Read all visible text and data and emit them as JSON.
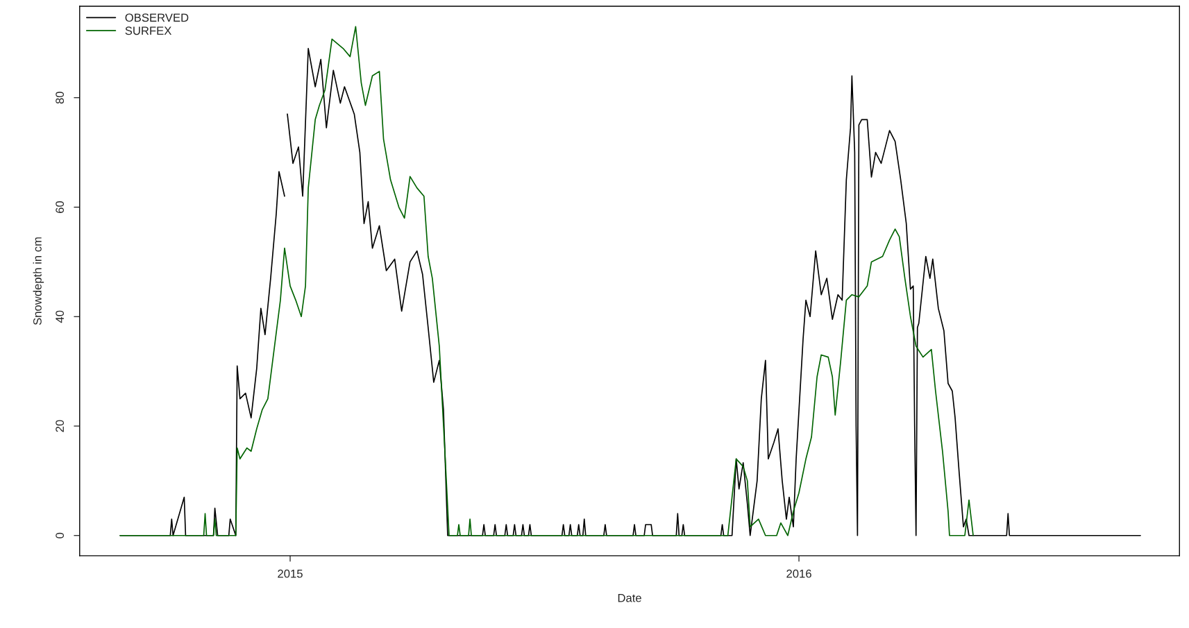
{
  "chart_data": {
    "type": "line",
    "xlabel": "Date",
    "ylabel": "Snowdepth in cm",
    "xlim": [
      "2014-08-03",
      "2016-09-30"
    ],
    "xticks": [
      {
        "value": "2015-01-01",
        "label": "2015"
      },
      {
        "value": "2016-01-01",
        "label": "2016"
      }
    ],
    "ylim": [
      -3.7,
      96.7
    ],
    "yticks": [
      0,
      20,
      40,
      60,
      80
    ],
    "grid": false,
    "legend": "top left",
    "line_style": "solid",
    "series": [
      {
        "name": "OBSERVED",
        "color": "#000000",
        "x": [
          "2014-09-01",
          "2014-10-07",
          "2014-10-08",
          "2014-10-09",
          "2014-10-17",
          "2014-10-18",
          "2014-10-20",
          "2014-11-07",
          "2014-11-08",
          "2014-11-10",
          "2014-11-18",
          "2014-11-19",
          "2014-11-23",
          "2014-11-24",
          "2014-11-26",
          "2014-11-30",
          "2014-12-04",
          "2014-12-08",
          "2014-12-11",
          "2014-12-14",
          "2014-12-18",
          "2014-12-22",
          "2014-12-24",
          "2014-12-28",
          "2014-12-29",
          "2014-12-30",
          "2015-01-03",
          "2015-01-07",
          "2015-01-10",
          "2015-01-14",
          "2015-01-19",
          "2015-01-23",
          "2015-01-27",
          "2015-02-01",
          "2015-02-06",
          "2015-02-09",
          "2015-02-16",
          "2015-02-20",
          "2015-02-23",
          "2015-02-26",
          "2015-03-01",
          "2015-03-06",
          "2015-03-11",
          "2015-03-17",
          "2015-03-22",
          "2015-03-28",
          "2015-04-02",
          "2015-04-06",
          "2015-04-10",
          "2015-04-14",
          "2015-04-18",
          "2015-04-21",
          "2015-04-24",
          "2015-05-19",
          "2015-05-20",
          "2015-05-21",
          "2015-05-27",
          "2015-05-28",
          "2015-05-29",
          "2015-06-04",
          "2015-06-05",
          "2015-06-06",
          "2015-06-10",
          "2015-06-11",
          "2015-06-12",
          "2015-06-16",
          "2015-06-17",
          "2015-06-18",
          "2015-06-21",
          "2015-06-22",
          "2015-06-23",
          "2015-07-15",
          "2015-07-16",
          "2015-07-17",
          "2015-07-20",
          "2015-07-21",
          "2015-07-22",
          "2015-07-26",
          "2015-07-27",
          "2015-07-28",
          "2015-07-30",
          "2015-07-31",
          "2015-08-01",
          "2015-08-14",
          "2015-08-15",
          "2015-08-16",
          "2015-09-04",
          "2015-09-05",
          "2015-09-06",
          "2015-09-12",
          "2015-09-13",
          "2015-09-17",
          "2015-09-18",
          "2015-10-05",
          "2015-10-06",
          "2015-10-07",
          "2015-10-09",
          "2015-10-10",
          "2015-10-11",
          "2015-11-06",
          "2015-11-07",
          "2015-11-08",
          "2015-11-14",
          "2015-11-17",
          "2015-11-19",
          "2015-11-22",
          "2015-11-25",
          "2015-11-27",
          "2015-12-02",
          "2015-12-05",
          "2015-12-08",
          "2015-12-10",
          "2015-12-14",
          "2015-12-17",
          "2015-12-20",
          "2015-12-23",
          "2015-12-25",
          "2015-12-28",
          "2015-12-30",
          "2016-01-04",
          "2016-01-06",
          "2016-01-09",
          "2016-01-13",
          "2016-01-17",
          "2016-01-21",
          "2016-01-25",
          "2016-01-29",
          "2016-02-01",
          "2016-02-04",
          "2016-02-07",
          "2016-02-08",
          "2016-02-10",
          "2016-02-11",
          "2016-02-12",
          "2016-02-13",
          "2016-02-15",
          "2016-02-19",
          "2016-02-22",
          "2016-02-25",
          "2016-02-29",
          "2016-03-06",
          "2016-03-10",
          "2016-03-14",
          "2016-03-18",
          "2016-03-21",
          "2016-03-23",
          "2016-03-24",
          "2016-03-25",
          "2016-03-26",
          "2016-03-27",
          "2016-04-01",
          "2016-04-04",
          "2016-04-06",
          "2016-04-10",
          "2016-04-14",
          "2016-04-17",
          "2016-04-20",
          "2016-04-22",
          "2016-04-25",
          "2016-04-28",
          "2016-04-30",
          "2016-05-02",
          "2016-05-29",
          "2016-05-30",
          "2016-05-31",
          "2016-09-02"
        ],
        "values": [
          0,
          0,
          3,
          0,
          7,
          0,
          0,
          0,
          5,
          0,
          0,
          3,
          0,
          31,
          25,
          26,
          21.5,
          30.5,
          41.5,
          36.7,
          47,
          58.7,
          66.5,
          62,
          null,
          77,
          68,
          71,
          62,
          89,
          82,
          87,
          74.5,
          85,
          79,
          82,
          77,
          70,
          57,
          61,
          52.5,
          56.6,
          48.4,
          50.5,
          41,
          50,
          52,
          47.7,
          38,
          28,
          32,
          23,
          0,
          0,
          2,
          0,
          0,
          2,
          0,
          0,
          2,
          0,
          0,
          2,
          0,
          0,
          2,
          0,
          0,
          2,
          0,
          0,
          2,
          0,
          0,
          2,
          0,
          0,
          2,
          0,
          0,
          3,
          0,
          0,
          2,
          0,
          0,
          2,
          0,
          0,
          2,
          2,
          0,
          0,
          4,
          0,
          0,
          2,
          0,
          0,
          2,
          0,
          0,
          14,
          8.5,
          13.3,
          5.8,
          0,
          10,
          25,
          32,
          14,
          17,
          19.5,
          10,
          3,
          7,
          1.6,
          14,
          36,
          43,
          40,
          52,
          44,
          47,
          39.5,
          44,
          43,
          65,
          74.5,
          84,
          70,
          20,
          0,
          75,
          76,
          76,
          65.5,
          70,
          68,
          74,
          72,
          65,
          57,
          45,
          45.6,
          20,
          0,
          38,
          38.8,
          51,
          47,
          50.5,
          41.5,
          37.4,
          27.8,
          26.4,
          21.6,
          11.3,
          1.6,
          3,
          0,
          0,
          4,
          0,
          0
        ]
      },
      {
        "name": "SURFEX",
        "color": "#006400",
        "x": [
          "2014-09-01",
          "2014-10-31",
          "2014-11-01",
          "2014-11-02",
          "2014-11-07",
          "2014-11-08",
          "2014-11-09",
          "2014-11-23",
          "2014-11-24",
          "2014-11-26",
          "2014-12-01",
          "2014-12-04",
          "2014-12-08",
          "2014-12-12",
          "2014-12-16",
          "2014-12-20",
          "2014-12-25",
          "2014-12-28",
          "2015-01-01",
          "2015-01-05",
          "2015-01-09",
          "2015-01-12",
          "2015-01-14",
          "2015-01-19",
          "2015-01-22",
          "2015-01-26",
          "2015-01-31",
          "2015-02-08",
          "2015-02-13",
          "2015-02-17",
          "2015-02-21",
          "2015-02-24",
          "2015-03-01",
          "2015-03-06",
          "2015-03-09",
          "2015-03-14",
          "2015-03-20",
          "2015-03-24",
          "2015-03-28",
          "2015-04-02",
          "2015-04-07",
          "2015-04-10",
          "2015-04-13",
          "2015-04-18",
          "2015-04-22",
          "2015-04-25",
          "2015-05-01",
          "2015-05-02",
          "2015-05-03",
          "2015-05-09",
          "2015-05-10",
          "2015-05-11",
          "2015-11-11",
          "2015-11-17",
          "2015-11-22",
          "2015-11-25",
          "2015-11-27",
          "2015-12-03",
          "2015-12-08",
          "2015-12-16",
          "2015-12-19",
          "2015-12-24",
          "2015-12-28",
          "2016-01-01",
          "2016-01-06",
          "2016-01-10",
          "2016-01-14",
          "2016-01-17",
          "2016-01-22",
          "2016-01-25",
          "2016-01-27",
          "2016-01-31",
          "2016-02-04",
          "2016-02-08",
          "2016-02-13",
          "2016-02-19",
          "2016-02-22",
          "2016-03-01",
          "2016-03-06",
          "2016-03-10",
          "2016-03-13",
          "2016-03-17",
          "2016-03-21",
          "2016-03-25",
          "2016-03-30",
          "2016-04-05",
          "2016-04-08",
          "2016-04-13",
          "2016-04-17",
          "2016-04-18",
          "2016-04-29",
          "2016-05-02",
          "2016-05-05"
        ],
        "values": [
          0,
          0,
          4,
          0,
          0,
          3,
          0,
          0,
          16,
          14,
          16,
          15.4,
          19.5,
          23,
          25,
          33,
          43,
          52.5,
          45.6,
          43,
          40,
          45.6,
          63.5,
          76,
          78.6,
          81.4,
          90.7,
          89,
          87.5,
          93,
          82.7,
          78.6,
          84,
          84.8,
          72.4,
          65,
          60,
          58,
          65.6,
          63.5,
          62,
          51,
          47,
          34.6,
          15.4,
          0,
          0,
          2,
          0,
          0,
          3,
          0,
          0,
          14,
          12.6,
          10,
          1.6,
          3,
          0,
          0,
          2.3,
          0,
          4.4,
          7.8,
          14,
          18,
          29,
          33,
          32.6,
          29,
          22,
          32,
          43,
          44,
          43.6,
          45.6,
          50,
          51,
          54,
          56,
          54.6,
          47,
          40,
          34.6,
          32.6,
          34,
          26.4,
          15.4,
          4.4,
          0,
          0,
          6.5,
          0
        ]
      }
    ]
  }
}
